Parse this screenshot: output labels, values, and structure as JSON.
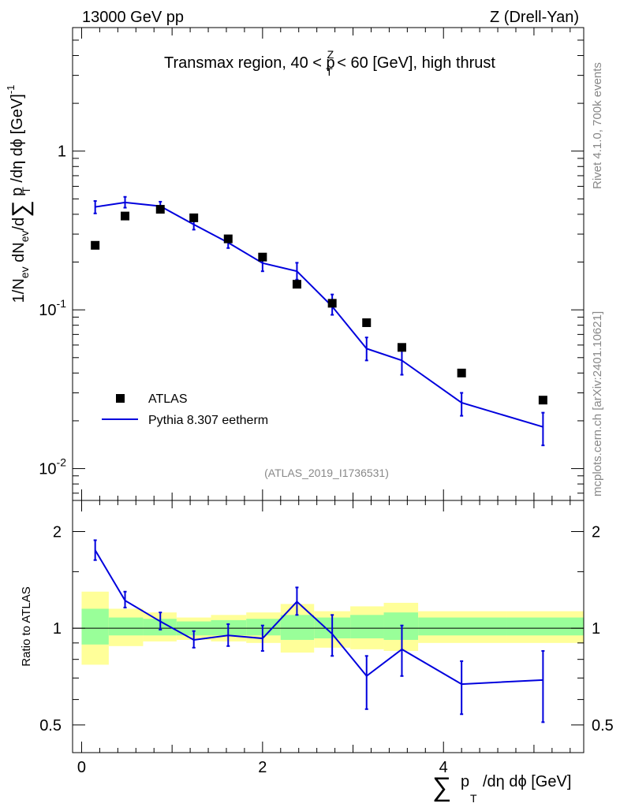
{
  "header": {
    "left_title": "13000 GeV pp",
    "right_title": "Z (Drell-Yan)"
  },
  "sidebar": {
    "rivet": "Rivet 4.1.0,  700k events",
    "site": "mcplots.cern.ch [arXiv:2401.10621]"
  },
  "reference": "(ATLAS_2019_I1736531)",
  "axis_texts": {
    "xlabel_main": "p",
    "xlabel_sub": "T",
    "xlabel_rest": "/dη dϕ [GeV]",
    "ylabel_upper": "1/N_ev dN_ev/d Σ p_T /dη dϕ [GeV]^-1",
    "ylabel_lower": "Ratio to ATLAS"
  },
  "colors": {
    "mc": "#0000dd",
    "data": "#000000",
    "band_outer": "#ffff99",
    "band_inner": "#99ff99"
  },
  "chart_data": [
    {
      "type": "scatter",
      "panel": "main",
      "title": "Transmax region, 40 < p_T^Z < 60 [GeV], high thrust",
      "title_parts": {
        "before": "Transmax region, 40 < p",
        "sup": "Z",
        "sub": "T",
        "after": " < 60 [GeV], high thrust"
      },
      "xlim": [
        -0.1,
        5.55
      ],
      "ylim": [
        0.0063,
        6.0
      ],
      "yscale": "log",
      "x_ticks": [
        0,
        2,
        4
      ],
      "y_ticks": [
        {
          "value": 0.01,
          "label_base": "10",
          "label_exp": "-2"
        },
        {
          "value": 0.1,
          "label_base": "10",
          "label_exp": "-1"
        },
        {
          "value": 1,
          "label_base": "1",
          "label_exp": ""
        }
      ],
      "legend": {
        "position": "bottom-left",
        "entries": [
          "ATLAS",
          "Pythia 8.307 eetherm"
        ]
      },
      "x": [
        0.15,
        0.48,
        0.87,
        1.24,
        1.62,
        2.0,
        2.38,
        2.77,
        3.15,
        3.54,
        4.2,
        5.1
      ],
      "series": [
        {
          "name": "ATLAS",
          "style": "markers",
          "values": [
            0.255,
            0.39,
            0.43,
            0.38,
            0.28,
            0.215,
            0.145,
            0.11,
            0.083,
            0.058,
            0.04,
            0.027
          ]
        },
        {
          "name": "Pythia 8.307 eetherm",
          "style": "line",
          "values": [
            0.445,
            0.475,
            0.45,
            0.345,
            0.265,
            0.197,
            0.175,
            0.105,
            0.057,
            0.048,
            0.026,
            0.0183
          ],
          "err_up": [
            0.485,
            0.515,
            0.48,
            0.375,
            0.29,
            0.22,
            0.198,
            0.125,
            0.067,
            0.058,
            0.03,
            0.0225
          ],
          "err_down": [
            0.405,
            0.44,
            0.42,
            0.32,
            0.245,
            0.175,
            0.155,
            0.093,
            0.048,
            0.039,
            0.0215,
            0.014
          ]
        }
      ]
    },
    {
      "type": "line",
      "panel": "ratio",
      "ylabel": "Ratio to ATLAS",
      "xlim": [
        -0.1,
        5.55
      ],
      "ylim": [
        0.41,
        2.5
      ],
      "yscale": "log",
      "reference_line": 1,
      "x_ticks": [
        0,
        2,
        4
      ],
      "y_ticks": [
        0.5,
        1,
        2
      ],
      "x": [
        0.15,
        0.48,
        0.87,
        1.24,
        1.62,
        2.0,
        2.38,
        2.77,
        3.15,
        3.54,
        4.2,
        5.1
      ],
      "values": [
        1.75,
        1.22,
        1.05,
        0.92,
        0.95,
        0.93,
        1.21,
        0.96,
        0.71,
        0.86,
        0.67,
        0.69
      ],
      "err_up": [
        1.88,
        1.3,
        1.12,
        0.98,
        1.03,
        1.02,
        1.34,
        1.1,
        0.82,
        1.02,
        0.79,
        0.85
      ],
      "err_down": [
        1.63,
        1.16,
        0.99,
        0.87,
        0.88,
        0.85,
        1.1,
        0.82,
        0.56,
        0.71,
        0.54,
        0.51
      ],
      "uncertainty_band": {
        "bin_edges": [
          0.0,
          0.3,
          0.68,
          1.05,
          1.43,
          1.82,
          2.2,
          2.57,
          2.97,
          3.34,
          3.72,
          4.7,
          5.55
        ],
        "outer_low": [
          0.77,
          0.88,
          0.91,
          0.92,
          0.91,
          0.9,
          0.84,
          0.87,
          0.86,
          0.85,
          0.9,
          0.9
        ],
        "outer_high": [
          1.3,
          1.15,
          1.12,
          1.08,
          1.1,
          1.12,
          1.19,
          1.13,
          1.17,
          1.2,
          1.13,
          1.13
        ],
        "inner_low": [
          0.89,
          0.95,
          0.95,
          0.95,
          0.95,
          0.95,
          0.92,
          0.93,
          0.93,
          0.92,
          0.95,
          0.95
        ],
        "inner_high": [
          1.15,
          1.08,
          1.07,
          1.05,
          1.06,
          1.07,
          1.1,
          1.08,
          1.1,
          1.12,
          1.08,
          1.08
        ]
      }
    }
  ]
}
